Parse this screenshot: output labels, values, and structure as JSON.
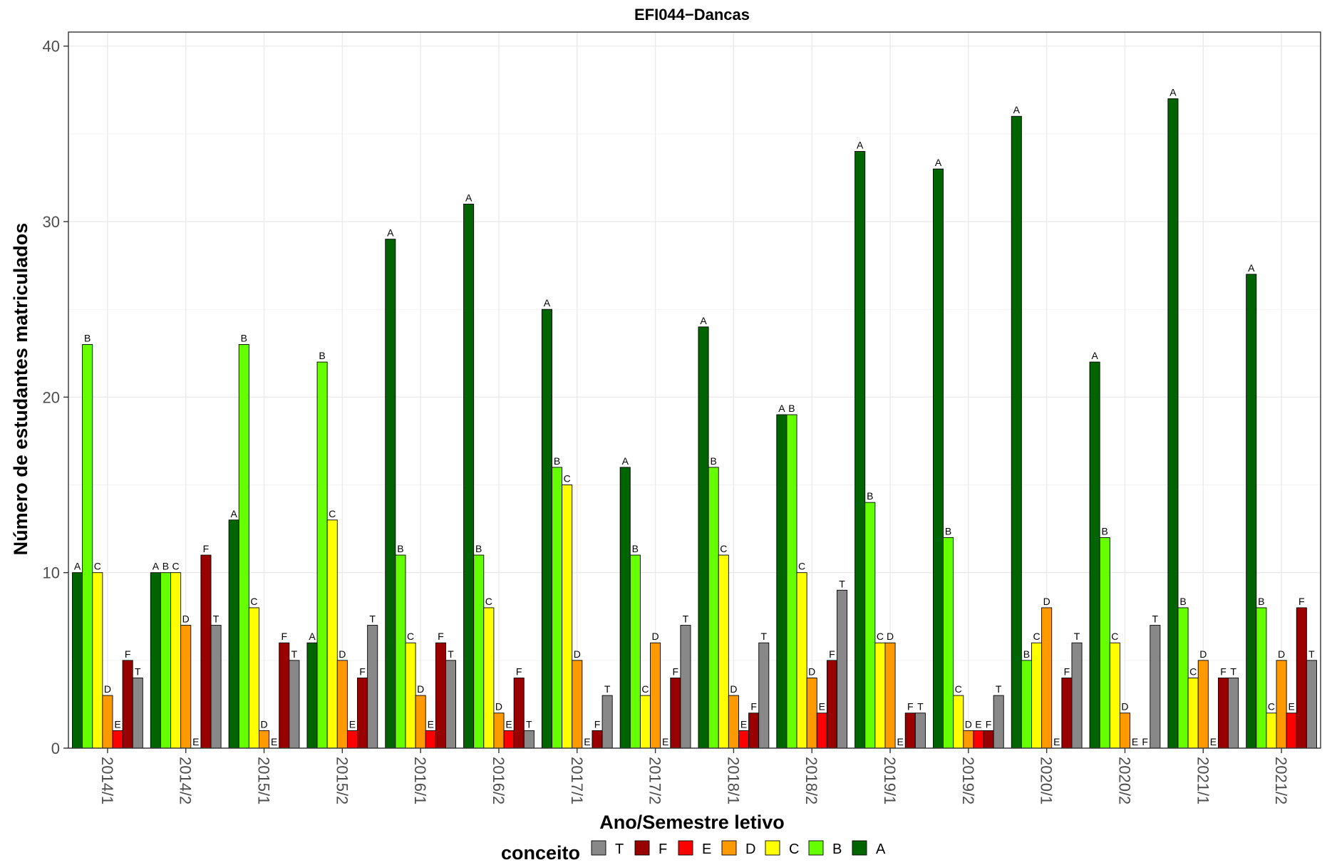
{
  "chart_data": {
    "type": "bar",
    "title": "EFI044−Dancas",
    "xlabel": "Ano/Semestre letivo",
    "ylabel": "Número de estudantes matriculados",
    "ylim": [
      0,
      40.8
    ],
    "yticks": [
      0,
      10,
      20,
      30,
      40
    ],
    "grid": true,
    "legend_title": "conceito",
    "legend_position": "bottom",
    "legend_order": [
      "T",
      "F",
      "E",
      "D",
      "C",
      "B",
      "A"
    ],
    "categories": [
      "2014/1",
      "2014/2",
      "2015/1",
      "2015/2",
      "2016/1",
      "2016/2",
      "2017/1",
      "2017/2",
      "2018/1",
      "2018/2",
      "2019/1",
      "2019/2",
      "2020/1",
      "2020/2",
      "2021/1",
      "2021/2"
    ],
    "series": [
      {
        "name": "A",
        "color": "#006400",
        "values": [
          10,
          10,
          13,
          6,
          29,
          31,
          25,
          16,
          24,
          19,
          34,
          33,
          36,
          22,
          37,
          27
        ]
      },
      {
        "name": "B",
        "color": "#66FF00",
        "values": [
          23,
          10,
          23,
          22,
          11,
          11,
          16,
          11,
          16,
          19,
          14,
          12,
          5,
          12,
          8,
          8
        ]
      },
      {
        "name": "C",
        "color": "#FFFF00",
        "values": [
          10,
          10,
          8,
          13,
          6,
          8,
          15,
          3,
          11,
          10,
          6,
          3,
          6,
          6,
          4,
          2
        ]
      },
      {
        "name": "D",
        "color": "#FF9900",
        "values": [
          3,
          7,
          1,
          5,
          3,
          2,
          5,
          6,
          3,
          4,
          6,
          1,
          8,
          2,
          5,
          5
        ]
      },
      {
        "name": "E",
        "color": "#FF0000",
        "values": [
          1,
          0,
          0,
          1,
          1,
          1,
          0,
          0,
          1,
          2,
          0,
          1,
          0,
          0,
          0,
          2
        ]
      },
      {
        "name": "F",
        "color": "#990000",
        "values": [
          5,
          11,
          6,
          4,
          6,
          4,
          1,
          4,
          2,
          5,
          2,
          1,
          4,
          0,
          4,
          8
        ]
      },
      {
        "name": "T",
        "color": "#888888",
        "values": [
          4,
          7,
          5,
          7,
          5,
          1,
          3,
          7,
          6,
          9,
          2,
          3,
          6,
          7,
          4,
          5
        ]
      }
    ]
  }
}
